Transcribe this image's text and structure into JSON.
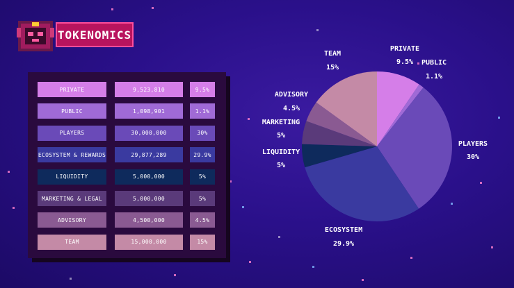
{
  "header": {
    "title": "TOKENOMICS"
  },
  "colors": {
    "private": "#d57ee8",
    "public": "#a06ad6",
    "players": "#6a4ab8",
    "ecosystem": "#3a3aa0",
    "liquidity": "#0e2a5c",
    "marketing": "#5a3a7a",
    "advisory": "#8a5a92",
    "team": "#c48aa6"
  },
  "table": {
    "rows": [
      {
        "name": "PRIVATE",
        "amount": "9,523,810",
        "percent": "9.5%",
        "color": "#d57ee8"
      },
      {
        "name": "PUBLIC",
        "amount": "1,098,901",
        "percent": "1.1%",
        "color": "#a06ad6"
      },
      {
        "name": "PLAYERS",
        "amount": "30,000,000",
        "percent": "30%",
        "color": "#6a4ab8"
      },
      {
        "name": "ECOSYSTEM & REWARDS",
        "amount": "29,877,289",
        "percent": "29.9%",
        "color": "#3a3aa0"
      },
      {
        "name": "LIQUIDITY",
        "amount": "5,000,000",
        "percent": "5%",
        "color": "#0e2a5c"
      },
      {
        "name": "MARKETING & LEGAL",
        "amount": "5,000,000",
        "percent": "5%",
        "color": "#5a3a7a"
      },
      {
        "name": "ADVISORY",
        "amount": "4,500,000",
        "percent": "4.5%",
        "color": "#8a5a92"
      },
      {
        "name": "TEAM",
        "amount": "15,000,000",
        "percent": "15%",
        "color": "#c48aa6"
      }
    ]
  },
  "chart_data": {
    "type": "pie",
    "title": "",
    "categories": [
      "PRIVATE",
      "PUBLIC",
      "PLAYERS",
      "ECOSYSTEM",
      "LIQUIDITY",
      "MARKETING",
      "ADVISORY",
      "TEAM"
    ],
    "values": [
      9.5,
      1.1,
      30,
      29.9,
      5,
      5,
      4.5,
      15
    ],
    "value_labels": [
      "9.5%",
      "1.1%",
      "30%",
      "29.9%",
      "5%",
      "5%",
      "4.5%",
      "15%"
    ],
    "colors": [
      "#d57ee8",
      "#a06ad6",
      "#6a4ab8",
      "#3a3aa0",
      "#0e2a5c",
      "#5a3a7a",
      "#8a5a92",
      "#c48aa6"
    ]
  }
}
